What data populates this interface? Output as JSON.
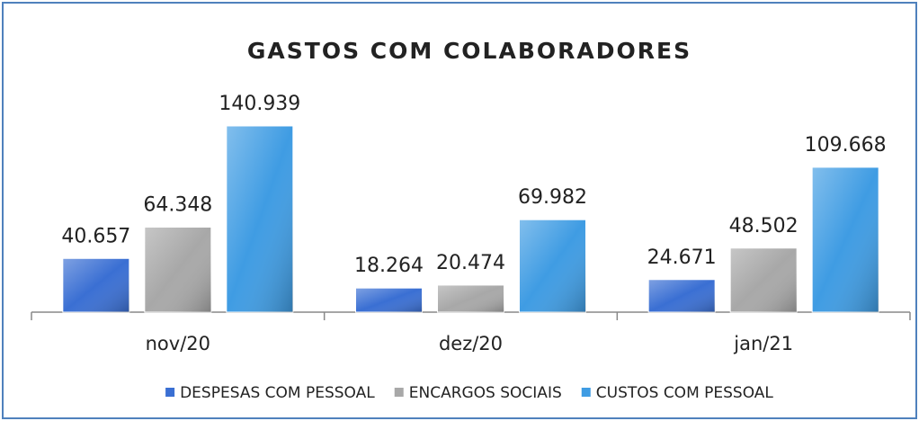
{
  "chart_data": {
    "type": "bar",
    "title": "GASTOS COM COLABORADORES",
    "categories": [
      "nov/20",
      "dez/20",
      "jan/21"
    ],
    "series": [
      {
        "name": "DESPESAS COM PESSOAL",
        "color": "#3a6fd3",
        "values": [
          40657,
          18264,
          24671
        ],
        "value_labels": [
          "40.657",
          "18.264",
          "24.671"
        ]
      },
      {
        "name": "ENCARGOS SOCIAIS",
        "color": "#a8a8a8",
        "values": [
          64348,
          20474,
          48502
        ],
        "value_labels": [
          "64.348",
          "20.474",
          "48.502"
        ]
      },
      {
        "name": "CUSTOS COM PESSOAL",
        "color": "#3f9ce3",
        "values": [
          140939,
          69982,
          109668
        ],
        "value_labels": [
          "140.939",
          "69.982",
          "109.668"
        ]
      }
    ],
    "legend": "bottom"
  }
}
